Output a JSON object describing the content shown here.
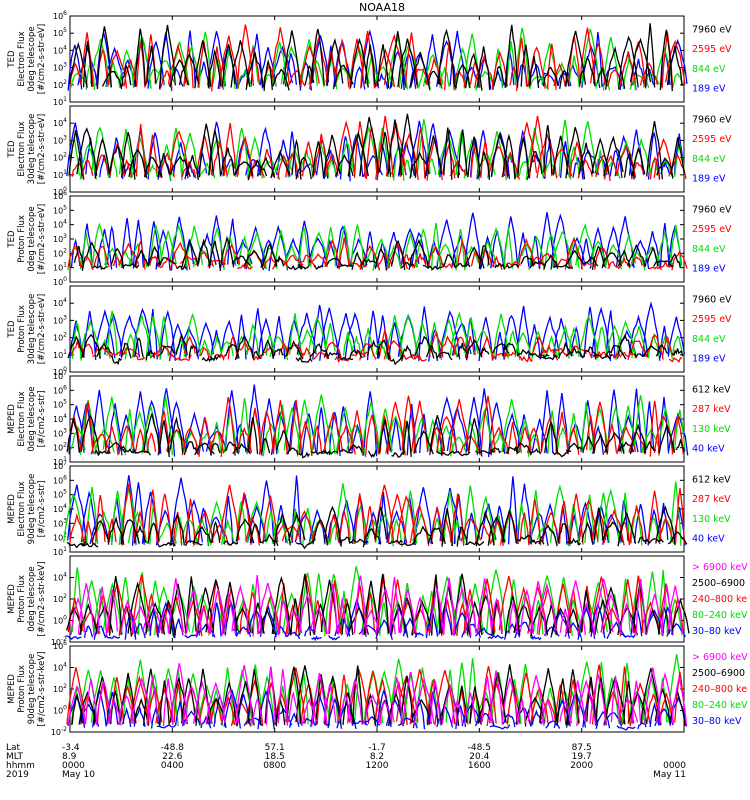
{
  "chart_data": {
    "type": "line",
    "title": "NOAA18",
    "panels": [
      {
        "id": "ted-e-0",
        "ylabel": [
          "TED",
          "Electron Flux",
          "0deg telescope",
          "[#/cm2-s-str-eV]"
        ],
        "ylog": [
          1,
          6
        ],
        "ticks": [
          1,
          2,
          3,
          4,
          5,
          6
        ],
        "legend": [
          {
            "label": "7960 eV",
            "color": "#000000"
          },
          {
            "label": "2595 eV",
            "color": "#ff0000"
          },
          {
            "label": "844 eV",
            "color": "#00dd00"
          },
          {
            "label": "189 eV",
            "color": "#0000ff"
          }
        ]
      },
      {
        "id": "ted-e-30",
        "ylabel": [
          "TED",
          "Electron Flux",
          "30deg telescope",
          "[#/cm2-s-str-eV]"
        ],
        "ylog": [
          0,
          5
        ],
        "ticks": [
          0,
          1,
          2,
          3,
          4
        ],
        "legend": [
          {
            "label": "7960 eV",
            "color": "#000000"
          },
          {
            "label": "2595 eV",
            "color": "#ff0000"
          },
          {
            "label": "844 eV",
            "color": "#00dd00"
          },
          {
            "label": "189 eV",
            "color": "#0000ff"
          }
        ]
      },
      {
        "id": "ted-p-0",
        "ylabel": [
          "TED",
          "Proton Flux",
          "0deg telescope",
          "[#/cm2-s-str-eV]"
        ],
        "ylog": [
          0,
          6
        ],
        "ticks": [
          0,
          1,
          2,
          3,
          4,
          5,
          6
        ],
        "legend": [
          {
            "label": "7960 eV",
            "color": "#000000"
          },
          {
            "label": "2595 eV",
            "color": "#ff0000"
          },
          {
            "label": "844 eV",
            "color": "#00dd00"
          },
          {
            "label": "189 eV",
            "color": "#0000ff"
          }
        ]
      },
      {
        "id": "ted-p-30",
        "ylabel": [
          "TED",
          "Proton Flux",
          "30deg telescope",
          "[#/cm2-s-str-eV]"
        ],
        "ylog": [
          0,
          5
        ],
        "ticks": [
          0,
          1,
          2,
          3,
          4
        ],
        "legend": [
          {
            "label": "7960 eV",
            "color": "#000000"
          },
          {
            "label": "2595 eV",
            "color": "#ff0000"
          },
          {
            "label": "844 eV",
            "color": "#00dd00"
          },
          {
            "label": "189 eV",
            "color": "#0000ff"
          }
        ]
      },
      {
        "id": "meped-e-0",
        "ylabel": [
          "MEPED",
          "Electron Flux",
          "0deg telescope",
          "[#/cm2-s-str]"
        ],
        "ylog": [
          1,
          7
        ],
        "ticks": [
          1,
          2,
          3,
          4,
          5,
          6,
          7
        ],
        "legend": [
          {
            "label": "612 keV",
            "color": "#000000"
          },
          {
            "label": "287 keV",
            "color": "#ff0000"
          },
          {
            "label": "130 keV",
            "color": "#00dd00"
          },
          {
            "label": "40 keV",
            "color": "#0000ff"
          }
        ]
      },
      {
        "id": "meped-e-90",
        "ylabel": [
          "MEPED",
          "Electron Flux",
          "90deg telescope",
          "[#/cm2-s-str]"
        ],
        "ylog": [
          1,
          7
        ],
        "ticks": [
          1,
          2,
          3,
          4,
          5,
          6,
          7
        ],
        "legend": [
          {
            "label": "612 keV",
            "color": "#000000"
          },
          {
            "label": "287 keV",
            "color": "#ff0000"
          },
          {
            "label": "130 keV",
            "color": "#00dd00"
          },
          {
            "label": "40 keV",
            "color": "#0000ff"
          }
        ]
      },
      {
        "id": "meped-p-0",
        "ylabel": [
          "MEPED",
          "Proton Flux",
          "0deg telescope",
          "[#/cm2-s-str-keV]"
        ],
        "ylog": [
          -2,
          6
        ],
        "ticks": [
          -2,
          0,
          2,
          4
        ],
        "legend": [
          {
            "label": "> 6900 keV",
            "color": "#ff00ff"
          },
          {
            "label": "2500–6900",
            "color": "#000000"
          },
          {
            "label": "240–800 ke",
            "color": "#ff0000"
          },
          {
            "label": "80–240 keV",
            "color": "#00dd00"
          },
          {
            "label": "30–80 keV",
            "color": "#0000ff"
          }
        ]
      },
      {
        "id": "meped-p-90",
        "ylabel": [
          "MEPED",
          "Proton Flux",
          "90deg telescope",
          "[#/cm2-s-str-keV]"
        ],
        "ylog": [
          -2,
          6
        ],
        "ticks": [
          -2,
          0,
          2,
          4,
          6
        ],
        "legend": [
          {
            "label": "> 6900 keV",
            "color": "#ff00ff"
          },
          {
            "label": "2500–6900",
            "color": "#000000"
          },
          {
            "label": "240–800 ke",
            "color": "#ff0000"
          },
          {
            "label": "80–240 keV",
            "color": "#00dd00"
          },
          {
            "label": "30–80 keV",
            "color": "#0000ff"
          }
        ]
      }
    ],
    "x_axis": {
      "row_labels": [
        "Lat",
        "MLT",
        "hhmm",
        "2019"
      ],
      "ticks": [
        {
          "lat": "-3.4",
          "mlt": "8.9",
          "hhmm": "0000",
          "date": "May 10"
        },
        {
          "lat": "-48.8",
          "mlt": "22.6",
          "hhmm": "0400",
          "date": ""
        },
        {
          "lat": "57.1",
          "mlt": "18.5",
          "hhmm": "0800",
          "date": ""
        },
        {
          "lat": "-1.7",
          "mlt": "8.2",
          "hhmm": "1200",
          "date": ""
        },
        {
          "lat": "-48.5",
          "mlt": "20.4",
          "hhmm": "1600",
          "date": ""
        },
        {
          "lat": "87.5",
          "mlt": "19.7",
          "hhmm": "2000",
          "date": ""
        },
        {
          "lat": "",
          "mlt": "",
          "hhmm": "0000",
          "date": "May 11"
        }
      ],
      "range_hours": [
        0,
        24
      ]
    }
  }
}
